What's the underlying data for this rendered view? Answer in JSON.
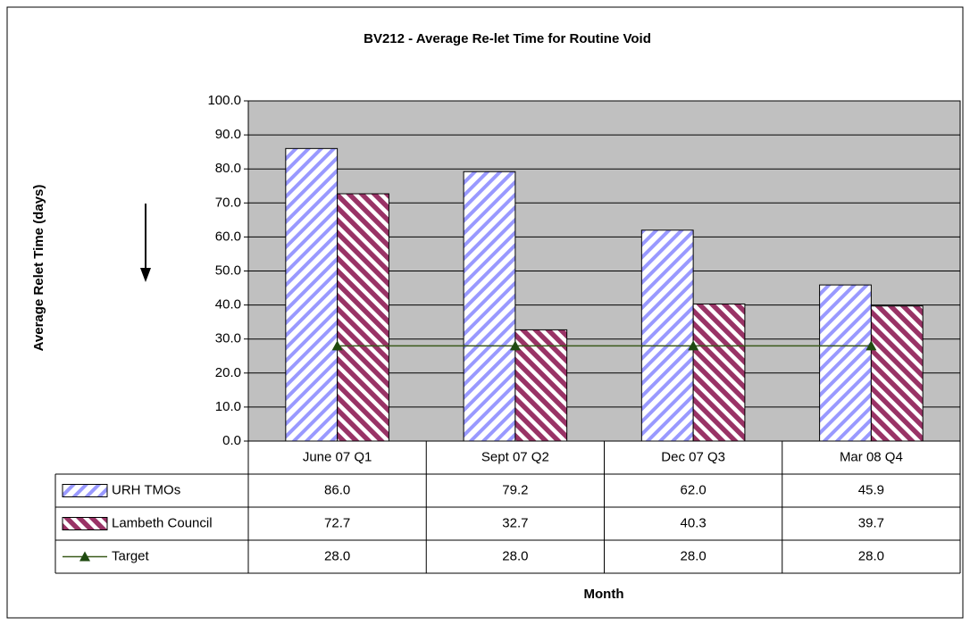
{
  "chart_data": {
    "type": "bar",
    "title": "BV212 - Average Re-let Time for Routine Void",
    "y_label": "Average Relet Time (days)",
    "x_label": "Month",
    "categories": [
      "June 07 Q1",
      "Sept 07 Q2",
      "Dec 07 Q3",
      "Mar 08 Q4"
    ],
    "series": [
      {
        "name": "URH TMOs",
        "type": "bar",
        "color": "#9999ff",
        "values": [
          86.0,
          79.2,
          62.0,
          45.9
        ],
        "value_labels": [
          "86.0",
          "79.2",
          "62.0",
          "45.9"
        ]
      },
      {
        "name": "Lambeth Council",
        "type": "bar",
        "color": "#993366",
        "values": [
          72.7,
          32.7,
          40.3,
          39.7
        ],
        "value_labels": [
          "72.7",
          "32.7",
          "40.3",
          "39.7"
        ]
      },
      {
        "name": "Target",
        "type": "line",
        "color": "#3a5a1a",
        "values": [
          28.0,
          28.0,
          28.0,
          28.0
        ],
        "value_labels": [
          "28.0",
          "28.0",
          "28.0",
          "28.0"
        ]
      }
    ],
    "ylim": [
      0,
      100
    ],
    "yticks": [
      {
        "value": 0,
        "label": "0.0"
      },
      {
        "value": 10,
        "label": "10.0"
      },
      {
        "value": 20,
        "label": "20.0"
      },
      {
        "value": 30,
        "label": "30.0"
      },
      {
        "value": 40,
        "label": "40.0"
      },
      {
        "value": 50,
        "label": "50.0"
      },
      {
        "value": 60,
        "label": "60.0"
      },
      {
        "value": 70,
        "label": "70.0"
      },
      {
        "value": 80,
        "label": "80.0"
      },
      {
        "value": 90,
        "label": "90.0"
      },
      {
        "value": 100,
        "label": "100.0"
      }
    ],
    "grid": true
  }
}
